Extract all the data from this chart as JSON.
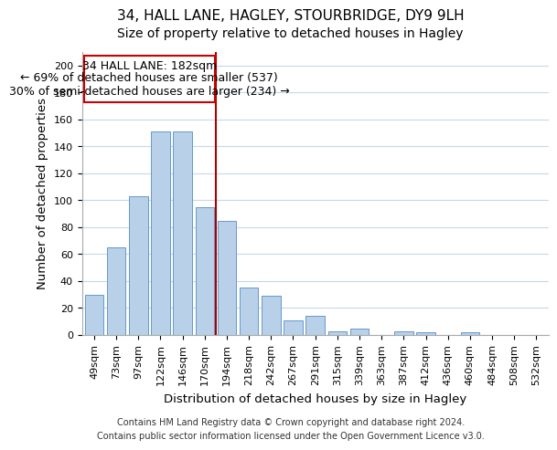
{
  "title": "34, HALL LANE, HAGLEY, STOURBRIDGE, DY9 9LH",
  "subtitle": "Size of property relative to detached houses in Hagley",
  "xlabel": "Distribution of detached houses by size in Hagley",
  "ylabel": "Number of detached properties",
  "bar_color": "#b8d0e8",
  "bar_edge_color": "#6699cc",
  "categories": [
    "49sqm",
    "73sqm",
    "97sqm",
    "122sqm",
    "146sqm",
    "170sqm",
    "194sqm",
    "218sqm",
    "242sqm",
    "267sqm",
    "291sqm",
    "315sqm",
    "339sqm",
    "363sqm",
    "387sqm",
    "412sqm",
    "436sqm",
    "460sqm",
    "484sqm",
    "508sqm",
    "532sqm"
  ],
  "values": [
    30,
    65,
    103,
    151,
    151,
    95,
    85,
    35,
    29,
    11,
    14,
    3,
    5,
    0,
    3,
    2,
    0,
    2,
    0,
    0,
    0
  ],
  "ylim": [
    0,
    210
  ],
  "yticks": [
    0,
    20,
    40,
    60,
    80,
    100,
    120,
    140,
    160,
    180,
    200
  ],
  "vline_x_index": 5.5,
  "vline_color": "#aa0000",
  "annotation_line1": "34 HALL LANE: 182sqm",
  "annotation_line2": "← 69% of detached houses are smaller (537)",
  "annotation_line3": "30% of semi-detached houses are larger (234) →",
  "footer_line1": "Contains HM Land Registry data © Crown copyright and database right 2024.",
  "footer_line2": "Contains public sector information licensed under the Open Government Licence v3.0.",
  "background_color": "#ffffff",
  "grid_color": "#c8d8e8",
  "title_fontsize": 11,
  "subtitle_fontsize": 10,
  "axis_label_fontsize": 9.5,
  "tick_fontsize": 8,
  "annotation_fontsize": 9,
  "footer_fontsize": 7
}
